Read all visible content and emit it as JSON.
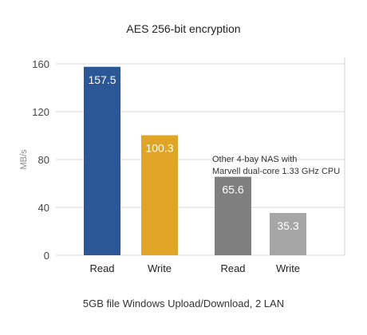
{
  "chart_data": {
    "type": "bar",
    "title": "AES 256-bit encryption",
    "xlabel": "5GB file Windows Upload/Download, 2 LAN",
    "ylabel": "MB/s",
    "ylim": [
      0,
      170
    ],
    "yticks": [
      "0",
      "40",
      "80",
      "120",
      "160"
    ],
    "grid": true,
    "categories": [
      "Read",
      "Write",
      "Read",
      "Write"
    ],
    "values": [
      157.5,
      100.3,
      65.6,
      35.3
    ],
    "value_labels": [
      "157.5",
      "100.3",
      "65.6",
      "35.3"
    ],
    "colors": [
      "#2b5797",
      "#e0a526",
      "#7f7f7f",
      "#a6a6a6"
    ],
    "annotation": [
      "Other 4-bay NAS with",
      "Marvell dual-core 1.33 GHz CPU"
    ]
  }
}
